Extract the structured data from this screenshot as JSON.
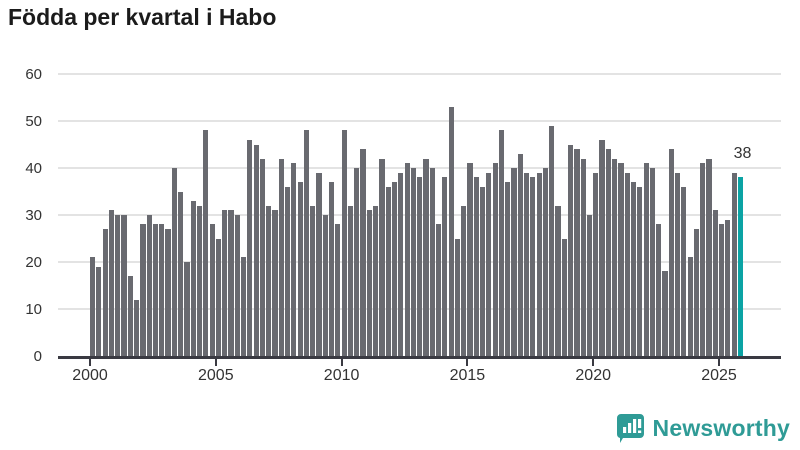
{
  "title": "Födda per kvartal i Habo",
  "colors": {
    "bar": "#696a70",
    "highlight": "#0ba3a4",
    "axis": "#3a3a42",
    "grid": "#e3e3e3",
    "tick_text": "#333333",
    "title_text": "#1b1b1b",
    "logo": "#2f9b96"
  },
  "chart_data": {
    "type": "bar",
    "title": "Födda per kvartal i Habo",
    "xlabel": "",
    "ylabel": "",
    "ylim": [
      0,
      60
    ],
    "y_ticks": [
      0,
      10,
      20,
      30,
      40,
      50,
      60
    ],
    "x_tick_years": [
      2000,
      2005,
      2010,
      2015,
      2020,
      2025
    ],
    "x_tick_labels": [
      "2000",
      "2005",
      "2010",
      "2015",
      "2020",
      "2025"
    ],
    "start_year": 2000,
    "quarters_per_year": 4,
    "grid": true,
    "legend": false,
    "series": [
      {
        "name": "Födda per kvartal",
        "values": [
          21,
          19,
          27,
          31,
          30,
          30,
          17,
          12,
          28,
          30,
          28,
          28,
          27,
          40,
          35,
          20,
          33,
          32,
          48,
          28,
          25,
          31,
          31,
          30,
          21,
          46,
          45,
          42,
          32,
          31,
          42,
          36,
          41,
          37,
          48,
          32,
          39,
          30,
          37,
          28,
          48,
          32,
          40,
          44,
          31,
          32,
          42,
          36,
          37,
          39,
          41,
          40,
          38,
          42,
          40,
          28,
          38,
          53,
          25,
          32,
          41,
          38,
          36,
          39,
          41,
          48,
          37,
          40,
          43,
          39,
          38,
          39,
          40,
          49,
          32,
          25,
          45,
          44,
          42,
          30,
          39,
          46,
          44,
          42,
          41,
          39,
          37,
          36,
          41,
          40,
          28,
          18,
          44,
          39,
          36,
          21,
          27,
          41,
          42,
          31,
          28,
          29,
          39,
          38
        ]
      }
    ],
    "highlight": {
      "index": 103,
      "value": 38,
      "label": "38"
    }
  },
  "branding": {
    "name": "Newsworthy",
    "icon": "newsworthy-speech-bubble-chart-icon"
  }
}
